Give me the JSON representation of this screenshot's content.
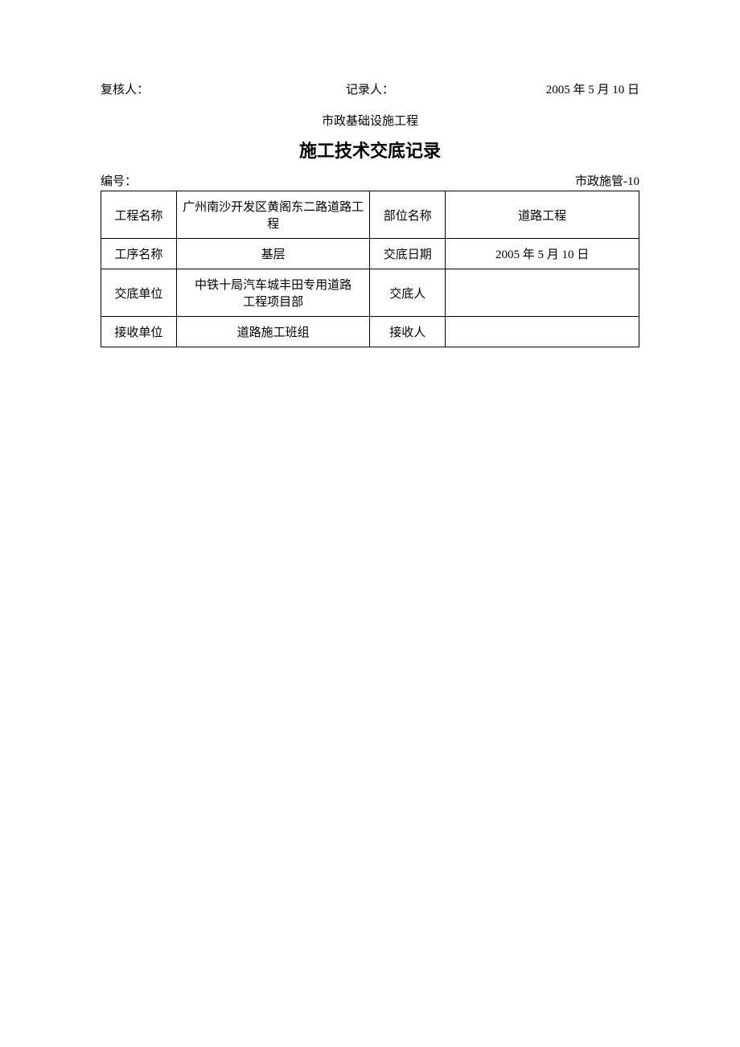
{
  "top": {
    "reviewer_label": "复核人：",
    "recorder_label": "记录人：",
    "date": "2005 年 5 月 10 日"
  },
  "subtitle": "市政基础设施工程",
  "title": "施工技术交底记录",
  "meta": {
    "serial_label": "编号：",
    "doc_code": "市政施管-10"
  },
  "table": {
    "rows": [
      {
        "label1": "工程名称",
        "value1": "广州南沙开发区黄阁东二路道路工程",
        "label2": "部位名称",
        "value2": "道路工程"
      },
      {
        "label1": "工序名称",
        "value1": "基层",
        "label2": "交底日期",
        "value2": "2005 年 5 月 10 日"
      },
      {
        "label1": "交底单位",
        "value1": "中铁十局汽车城丰田专用道路\n工程项目部",
        "label2": "交底人",
        "value2": ""
      },
      {
        "label1": "接收单位",
        "value1": "道路施工班组",
        "label2": "接收人",
        "value2": ""
      }
    ]
  }
}
